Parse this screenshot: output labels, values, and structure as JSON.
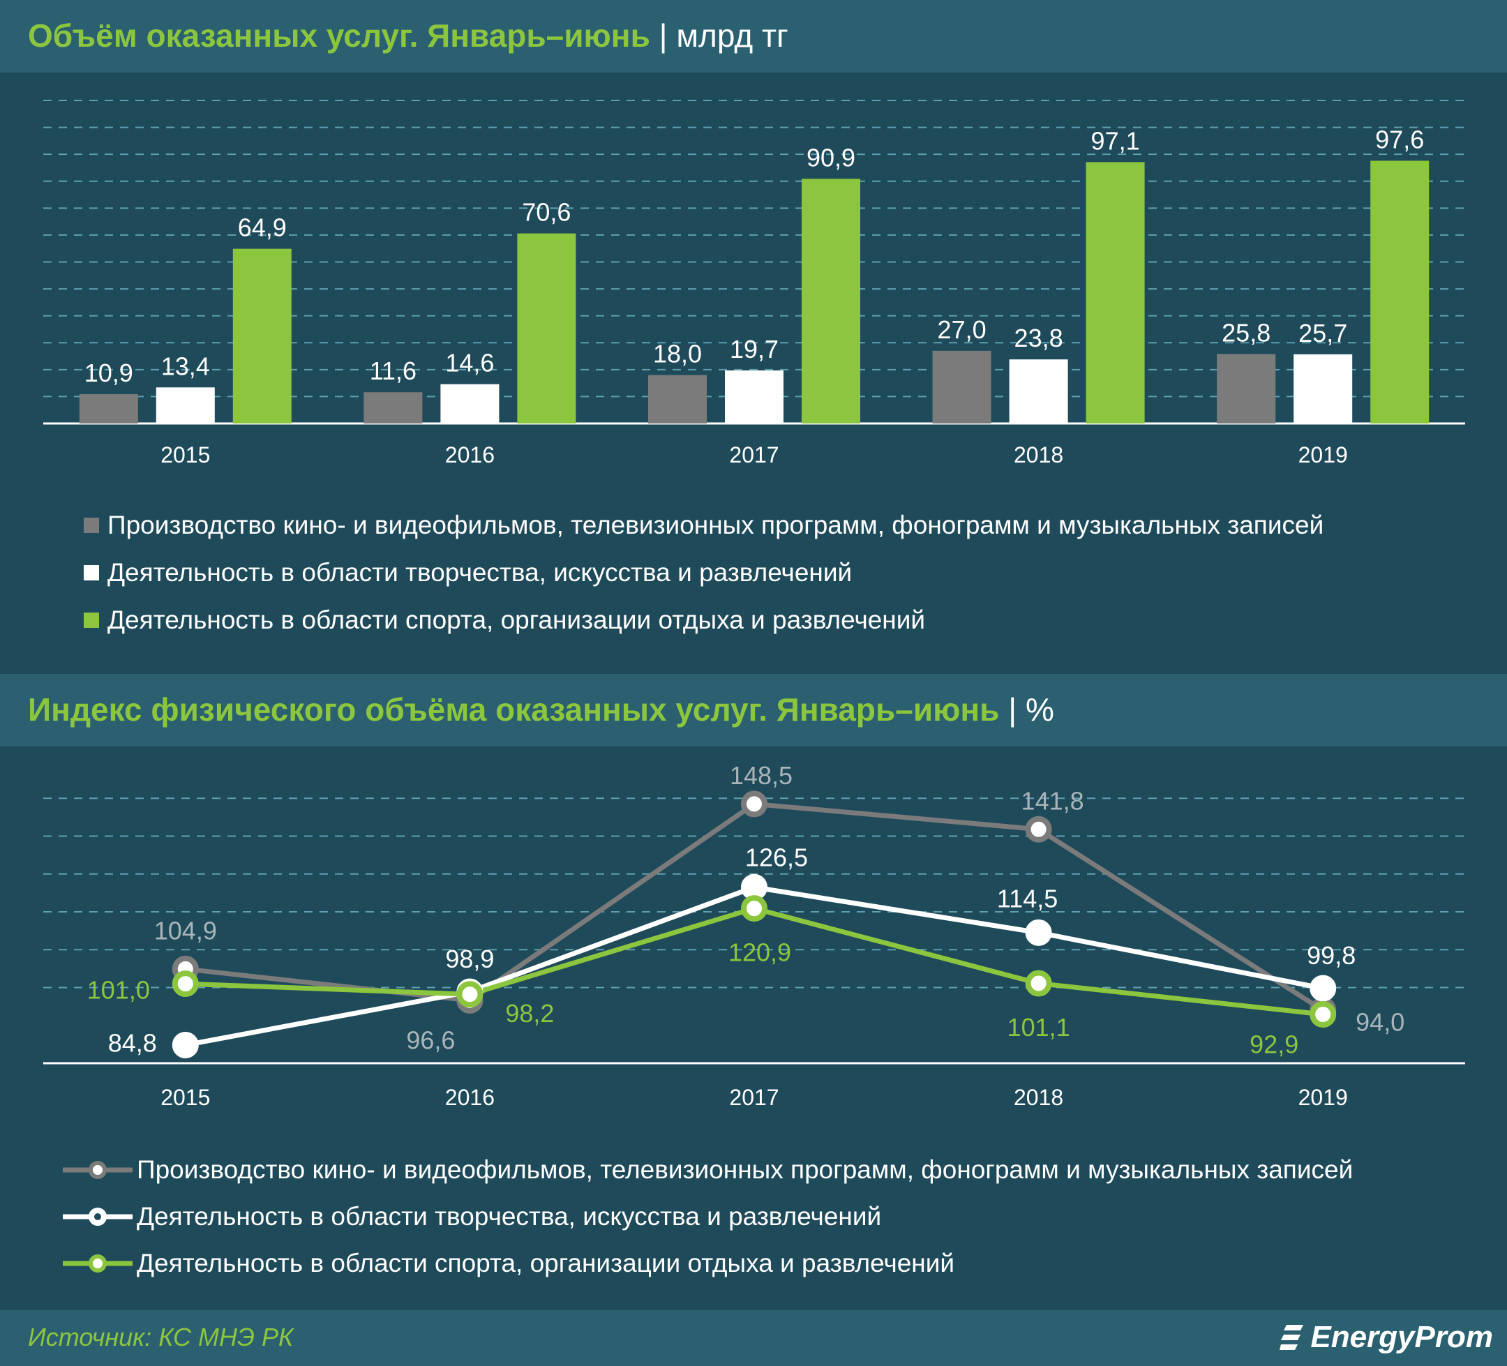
{
  "colors": {
    "gray": "#7b7b7b",
    "white": "#ffffff",
    "green": "#8cc63f",
    "bg": "#1f4a5a",
    "band": "#2a6070",
    "grid": "#5fa0b0"
  },
  "chart_data": [
    {
      "type": "bar",
      "title": "Объём оказанных услуг. Январь–июнь",
      "unit": "| млрд тг",
      "categories": [
        "2015",
        "2016",
        "2017",
        "2018",
        "2019"
      ],
      "series": [
        {
          "name": "Производство кино- и видеофильмов, телевизионных программ, фонограмм и музыкальных записей",
          "values": [
            10.9,
            11.6,
            18.0,
            27.0,
            25.8
          ],
          "labels": [
            "10,9",
            "11,6",
            "18,0",
            "27,0",
            "25,8"
          ],
          "color": "#7b7b7b"
        },
        {
          "name": "Деятельность в области творчества, искусства и развлечений",
          "values": [
            13.4,
            14.6,
            19.7,
            23.8,
            25.7
          ],
          "labels": [
            "13,4",
            "14,6",
            "19,7",
            "23,8",
            "25,7"
          ],
          "color": "#ffffff"
        },
        {
          "name": "Деятельность в области спорта, организации отдыха и развлечений",
          "values": [
            64.9,
            70.6,
            90.9,
            97.1,
            97.6
          ],
          "labels": [
            "64,9",
            "70,6",
            "90,9",
            "97,1",
            "97,6"
          ],
          "color": "#8cc63f"
        }
      ],
      "ylim": [
        0,
        120
      ],
      "grid": true,
      "legend_position": "bottom"
    },
    {
      "type": "line",
      "title": "Индекс физического объёма оказанных услуг. Январь–июнь",
      "unit": "| %",
      "categories": [
        "2015",
        "2016",
        "2017",
        "2018",
        "2019"
      ],
      "series": [
        {
          "name": "Производство кино- и видеофильмов, телевизионных программ, фонограмм и музыкальных записей",
          "values": [
            104.9,
            96.6,
            148.5,
            141.8,
            94.0
          ],
          "labels": [
            "104,9",
            "96,6",
            "148,5",
            "141,8",
            "94,0"
          ],
          "color": "#7b7b7b"
        },
        {
          "name": "Деятельность в области творчества, искусства и развлечений",
          "values": [
            84.8,
            98.9,
            126.5,
            114.5,
            99.8
          ],
          "labels": [
            "84,8",
            "98,9",
            "126,5",
            "114,5",
            "99,8"
          ],
          "color": "#ffffff"
        },
        {
          "name": "Деятельность в области спорта, организации отдыха и развлечений",
          "values": [
            101.0,
            98.2,
            120.9,
            101.1,
            92.9
          ],
          "labels": [
            "101,0",
            "98,2",
            "120,9",
            "101,1",
            "92,9"
          ],
          "color": "#8cc63f"
        }
      ],
      "ylim": [
        80,
        160
      ],
      "grid": true,
      "legend_position": "bottom"
    }
  ],
  "footer": {
    "source": "Источник: КС МНЭ РК",
    "brand": "EnergyProm"
  }
}
